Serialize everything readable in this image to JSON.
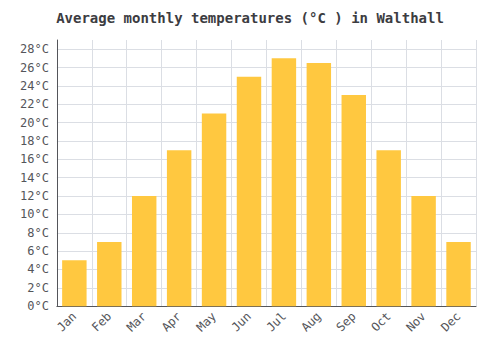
{
  "chart_data": {
    "type": "bar",
    "title": "Average monthly temperatures (°C ) in Walthall",
    "categories": [
      "Jan",
      "Feb",
      "Mar",
      "Apr",
      "May",
      "Jun",
      "Jul",
      "Aug",
      "Sep",
      "Oct",
      "Nov",
      "Dec"
    ],
    "values": [
      5,
      7,
      12,
      17,
      21,
      25,
      27,
      26.5,
      23,
      17,
      12,
      7
    ],
    "color": "#FFC840",
    "ylim": [
      0,
      29
    ],
    "yticks": [
      {
        "value": 0,
        "label": "0°C"
      },
      {
        "value": 2,
        "label": "2°C"
      },
      {
        "value": 4,
        "label": "4°C"
      },
      {
        "value": 6,
        "label": "6°C"
      },
      {
        "value": 8,
        "label": "8°C"
      },
      {
        "value": 10,
        "label": "10°C"
      },
      {
        "value": 12,
        "label": "12°C"
      },
      {
        "value": 14,
        "label": "14°C"
      },
      {
        "value": 16,
        "label": "16°C"
      },
      {
        "value": 18,
        "label": "18°C"
      },
      {
        "value": 20,
        "label": "20°C"
      },
      {
        "value": 22,
        "label": "22°C"
      },
      {
        "value": 24,
        "label": "24°C"
      },
      {
        "value": 26,
        "label": "26°C"
      },
      {
        "value": 28,
        "label": "28°C"
      }
    ],
    "grid": true
  }
}
